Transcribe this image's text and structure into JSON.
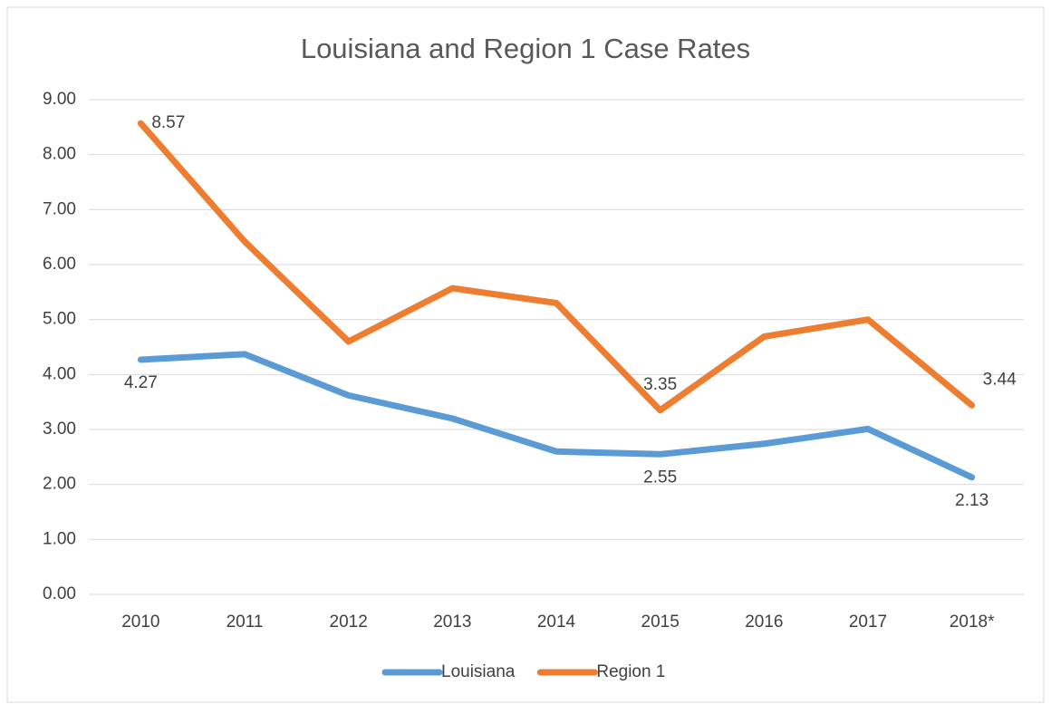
{
  "chart_data": {
    "type": "line",
    "title": "Louisiana and Region 1 Case Rates",
    "categories": [
      "2010",
      "2011",
      "2012",
      "2013",
      "2014",
      "2015",
      "2016",
      "2017",
      "2018*"
    ],
    "series": [
      {
        "name": "Louisiana",
        "color": "#5b9bd5",
        "values": [
          4.27,
          4.37,
          3.62,
          3.2,
          2.6,
          2.55,
          2.74,
          3.01,
          2.13
        ],
        "value_labels": [
          "4.27",
          null,
          null,
          null,
          null,
          "2.55",
          null,
          null,
          "2.13"
        ]
      },
      {
        "name": "Region 1",
        "color": "#ed7d31",
        "values": [
          8.57,
          6.42,
          4.6,
          5.57,
          5.3,
          3.35,
          4.69,
          5.0,
          3.44
        ],
        "value_labels": [
          "8.57",
          null,
          null,
          null,
          null,
          "3.35",
          null,
          null,
          "3.44"
        ]
      }
    ],
    "ylim": [
      0,
      9
    ],
    "yticks": [
      {
        "value": 0,
        "label": "0.00"
      },
      {
        "value": 1,
        "label": "1.00"
      },
      {
        "value": 2,
        "label": "2.00"
      },
      {
        "value": 3,
        "label": "3.00"
      },
      {
        "value": 4,
        "label": "4.00"
      },
      {
        "value": 5,
        "label": "5.00"
      },
      {
        "value": 6,
        "label": "6.00"
      },
      {
        "value": 7,
        "label": "7.00"
      },
      {
        "value": 8,
        "label": "8.00"
      },
      {
        "value": 9,
        "label": "9.00"
      }
    ],
    "grid": true,
    "legend": "bottom"
  }
}
